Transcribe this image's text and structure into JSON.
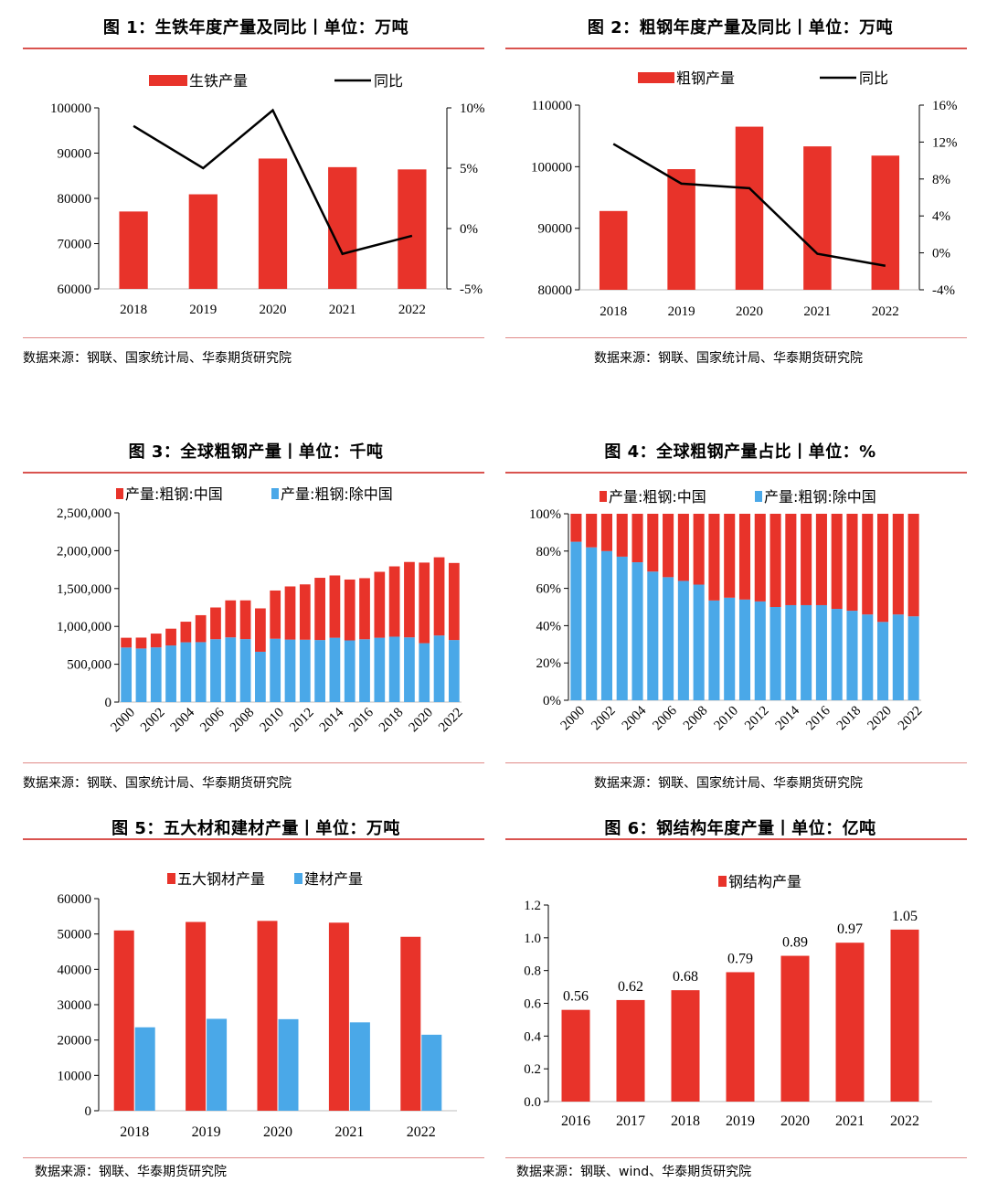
{
  "colors": {
    "red": "#e8332a",
    "blue": "#4aa8e8",
    "line": "#000000",
    "rule": "#d9534f"
  },
  "figures": [
    {
      "title": "图 1：生铁年度产量及同比丨单位：万吨",
      "source": "数据来源：钢联、国家统计局、华泰期货研究院"
    },
    {
      "title": "图 2：粗钢年度产量及同比丨单位：万吨",
      "source": "数据来源：钢联、国家统计局、华泰期货研究院"
    },
    {
      "title": "图 3：全球粗钢产量丨单位：千吨",
      "source": "数据来源：钢联、国家统计局、华泰期货研究院"
    },
    {
      "title": "图 4：全球粗钢产量占比丨单位：%",
      "source": "数据来源：钢联、国家统计局、华泰期货研究院"
    },
    {
      "title": "图 5：五大材和建材产量丨单位：万吨",
      "source": "数据来源：钢联、华泰期货研究院"
    },
    {
      "title": "图 6：钢结构年度产量丨单位：亿吨",
      "source": "数据来源：钢联、wind、华泰期货研究院"
    }
  ],
  "chart_data": [
    {
      "type": "bar",
      "categories": [
        "2018",
        "2019",
        "2020",
        "2021",
        "2022"
      ],
      "series": [
        {
          "name": "生铁产量",
          "type": "bar",
          "axis": "left",
          "values": [
            77100,
            80900,
            88800,
            86900,
            86400
          ]
        },
        {
          "name": "同比",
          "type": "line",
          "axis": "right",
          "values": [
            8.5,
            5.0,
            9.8,
            -2.1,
            -0.6
          ]
        }
      ],
      "ylim": [
        60000,
        100000
      ],
      "yticks": [
        "60000",
        "70000",
        "80000",
        "90000",
        "100000"
      ],
      "y2lim": [
        -5,
        10
      ],
      "y2ticks": [
        "-5%",
        "0%",
        "5%",
        "10%"
      ]
    },
    {
      "type": "bar",
      "categories": [
        "2018",
        "2019",
        "2020",
        "2021",
        "2022"
      ],
      "series": [
        {
          "name": "粗钢产量",
          "type": "bar",
          "axis": "left",
          "values": [
            92800,
            99600,
            106500,
            103300,
            101800
          ]
        },
        {
          "name": "同比",
          "type": "line",
          "axis": "right",
          "values": [
            11.8,
            7.5,
            7.0,
            -0.1,
            -1.4
          ]
        }
      ],
      "ylim": [
        80000,
        110000
      ],
      "yticks": [
        "80000",
        "90000",
        "100000",
        "110000"
      ],
      "y2lim": [
        -4,
        16
      ],
      "y2ticks": [
        "-4%",
        "0%",
        "4%",
        "8%",
        "12%",
        "16%"
      ]
    },
    {
      "type": "bar",
      "stacked": true,
      "categories": [
        "2000",
        "2001",
        "2002",
        "2003",
        "2004",
        "2005",
        "2006",
        "2007",
        "2008",
        "2009",
        "2010",
        "2011",
        "2012",
        "2013",
        "2014",
        "2015",
        "2016",
        "2017",
        "2018",
        "2019",
        "2020",
        "2021",
        "2022"
      ],
      "xticks": [
        "2000",
        "2002",
        "2004",
        "2006",
        "2008",
        "2010",
        "2012",
        "2014",
        "2016",
        "2018",
        "2020",
        "2022"
      ],
      "series": [
        {
          "name": "产量:粗钢:除中国",
          "values": [
            721000,
            708000,
            723000,
            748000,
            790000,
            792000,
            831000,
            855000,
            832000,
            665000,
            837000,
            826000,
            824000,
            820000,
            850000,
            815000,
            830000,
            850000,
            864000,
            855000,
            778000,
            880000,
            820000
          ]
        },
        {
          "name": "产量:粗钢:中国",
          "values": [
            129000,
            144000,
            182000,
            222000,
            272000,
            356000,
            419000,
            489000,
            512000,
            573000,
            637000,
            702000,
            731000,
            822000,
            823000,
            804000,
            807000,
            871000,
            929000,
            996000,
            1065000,
            1033000,
            1018000
          ]
        }
      ],
      "ylim": [
        0,
        2500000
      ],
      "yticks": [
        "0",
        "500,000",
        "1,000,000",
        "1,500,000",
        "2,000,000",
        "2,500,000"
      ]
    },
    {
      "type": "bar",
      "stacked": true,
      "categories": [
        "2000",
        "2001",
        "2002",
        "2003",
        "2004",
        "2005",
        "2006",
        "2007",
        "2008",
        "2009",
        "2010",
        "2011",
        "2012",
        "2013",
        "2014",
        "2015",
        "2016",
        "2017",
        "2018",
        "2019",
        "2020",
        "2021",
        "2022"
      ],
      "xticks": [
        "2000",
        "2002",
        "2004",
        "2006",
        "2008",
        "2010",
        "2012",
        "2014",
        "2016",
        "2018",
        "2020",
        "2022"
      ],
      "series": [
        {
          "name": "产量:粗钢:除中国",
          "values": [
            85,
            82,
            80,
            77,
            74,
            69,
            66,
            64,
            62,
            53.5,
            55,
            54,
            53,
            50,
            51,
            51,
            51,
            49,
            48,
            46,
            42,
            46,
            45
          ]
        },
        {
          "name": "产量:粗钢:中国",
          "values": [
            15,
            18,
            20,
            23,
            26,
            31,
            34,
            36,
            38,
            46.5,
            45,
            46,
            47,
            50,
            49,
            49,
            49,
            51,
            52,
            54,
            58,
            54,
            55
          ]
        }
      ],
      "ylim": [
        0,
        100
      ],
      "yticks": [
        "0%",
        "20%",
        "40%",
        "60%",
        "80%",
        "100%"
      ]
    },
    {
      "type": "bar",
      "categories": [
        "2018",
        "2019",
        "2020",
        "2021",
        "2022"
      ],
      "series": [
        {
          "name": "五大钢材产量",
          "values": [
            51000,
            53400,
            53700,
            53200,
            49200
          ]
        },
        {
          "name": "建材产量",
          "values": [
            23600,
            26000,
            25900,
            25000,
            21500
          ]
        }
      ],
      "ylim": [
        0,
        60000
      ],
      "yticks": [
        "0",
        "10000",
        "20000",
        "30000",
        "40000",
        "50000",
        "60000"
      ]
    },
    {
      "type": "bar",
      "categories": [
        "2016",
        "2017",
        "2018",
        "2019",
        "2020",
        "2021",
        "2022"
      ],
      "series": [
        {
          "name": "钢结构产量",
          "values": [
            0.56,
            0.62,
            0.68,
            0.79,
            0.89,
            0.97,
            1.05
          ],
          "labels": [
            "0.56",
            "0.62",
            "0.68",
            "0.79",
            "0.89",
            "0.97",
            "1.05"
          ]
        }
      ],
      "ylim": [
        0,
        1.2
      ],
      "yticks": [
        "0.0",
        "0.2",
        "0.4",
        "0.6",
        "0.8",
        "1.0",
        "1.2"
      ]
    }
  ]
}
